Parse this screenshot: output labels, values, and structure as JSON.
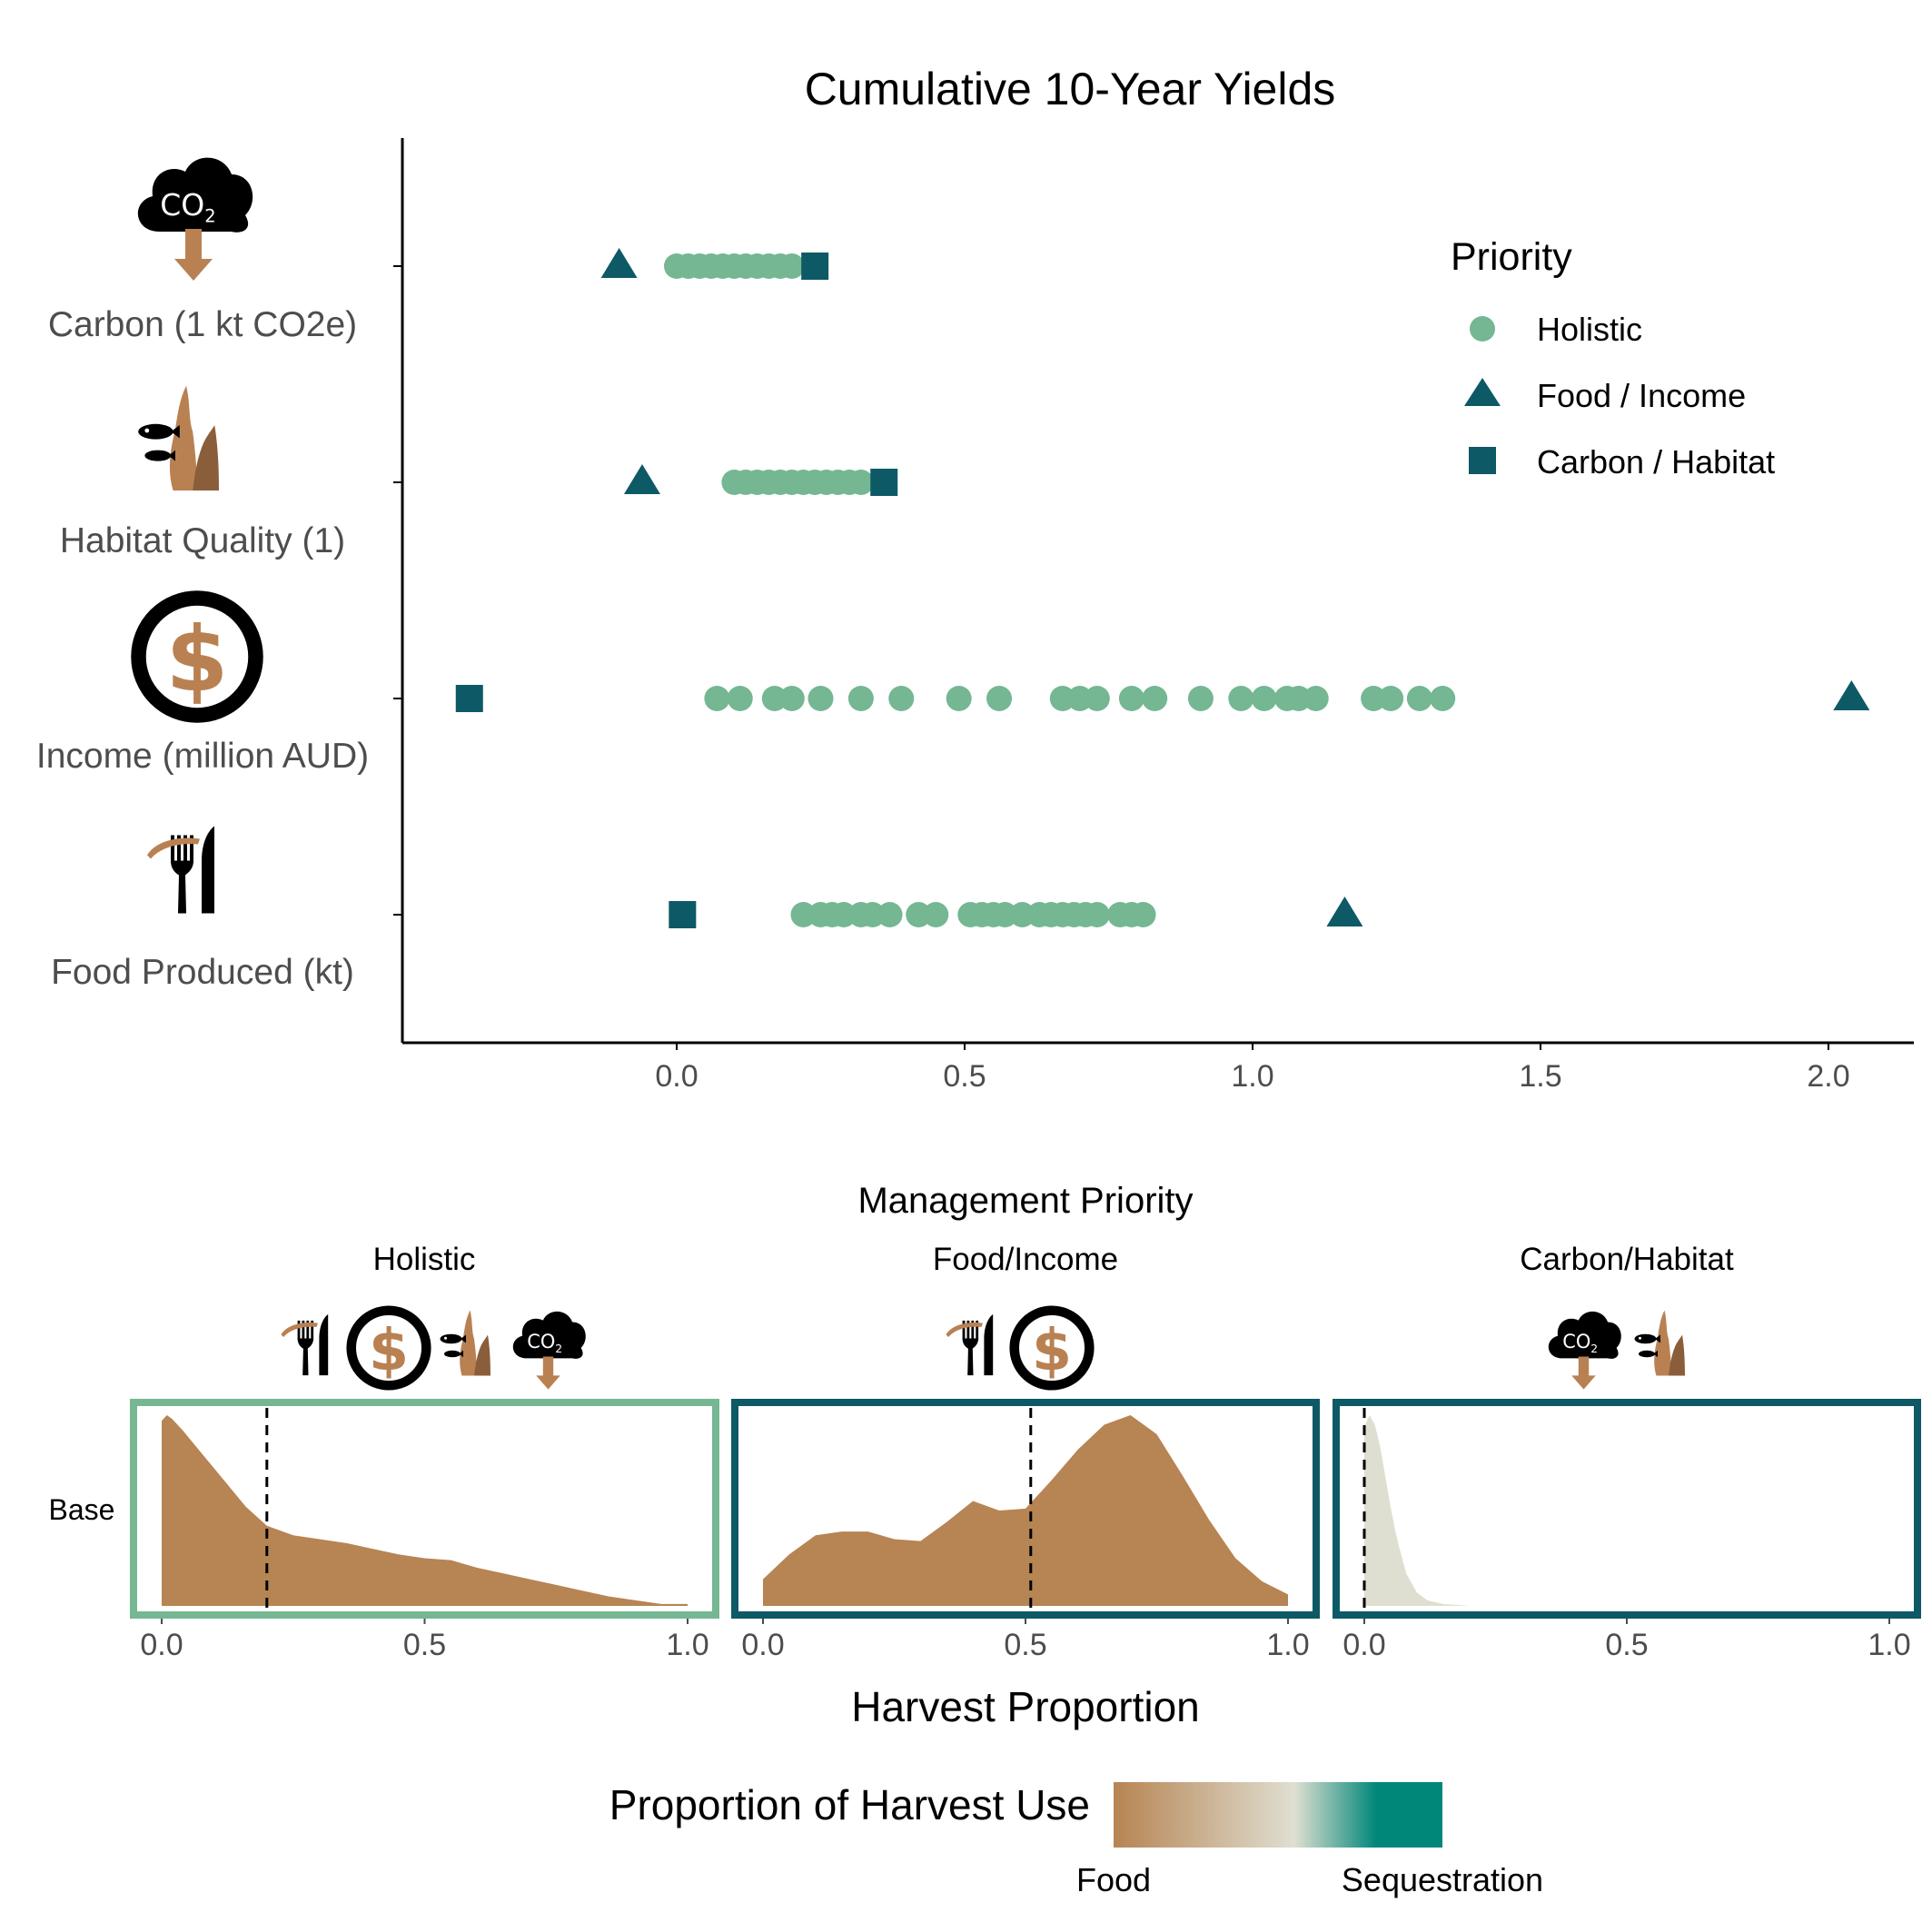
{
  "colors": {
    "holistic": "#74b792",
    "food_income": "#0d5966",
    "carbon_habitat": "#0d5966",
    "food": "#b78453",
    "sequestration": "#00877a",
    "mid": "#dfdfd1",
    "icon_dark": "#000000",
    "icon_brown": "#b98152",
    "icon_brown_dark": "#8a5e3b",
    "axis_text": "#4d4d4d"
  },
  "icons": {
    "carbon": "co2-cloud-down-arrow-icon",
    "habitat": "seaweed-with-fish-icon",
    "income": "dollar-coin-icon",
    "food": "fork-knife-seaweed-icon",
    "co2_text": "CO",
    "co2_sub": "2",
    "dollar": "$"
  },
  "chart_data": [
    {
      "type": "scatter",
      "title": "Cumulative 10-Year Yields",
      "xlabel": "",
      "ylabel": "",
      "xlim": [
        -0.47,
        2.15
      ],
      "x_ticks": [
        "0.0",
        "0.5",
        "1.0",
        "1.5",
        "2.0"
      ],
      "x_tick_values": [
        0,
        0.5,
        1.0,
        1.5,
        2.0
      ],
      "categories": [
        "Carbon (1 kt CO2e)",
        "Habitat Quality (1)",
        "Income (million AUD)",
        "Food Produced (kt)"
      ],
      "legend": {
        "title": "Priority",
        "position": "top-right",
        "entries": [
          {
            "label": "Holistic",
            "shape": "circle",
            "color": "#74b792"
          },
          {
            "label": "Food / Income",
            "shape": "triangle",
            "color": "#0d5966"
          },
          {
            "label": "Carbon / Habitat",
            "shape": "square",
            "color": "#0d5966"
          }
        ]
      },
      "series": [
        {
          "name": "Holistic",
          "shape": "circle",
          "points": {
            "Carbon (1 kt CO2e)": [
              0.0,
              0.02,
              0.04,
              0.06,
              0.08,
              0.1,
              0.12,
              0.14,
              0.16,
              0.18,
              0.2
            ],
            "Habitat Quality (1)": [
              0.1,
              0.12,
              0.14,
              0.16,
              0.18,
              0.2,
              0.22,
              0.24,
              0.26,
              0.28,
              0.3,
              0.32
            ],
            "Income (million AUD)": [
              0.07,
              0.11,
              0.17,
              0.2,
              0.25,
              0.32,
              0.39,
              0.49,
              0.56,
              0.67,
              0.7,
              0.73,
              0.79,
              0.83,
              0.91,
              0.98,
              1.02,
              1.06,
              1.08,
              1.11,
              1.21,
              1.24,
              1.29,
              1.33
            ],
            "Food Produced (kt)": [
              0.22,
              0.25,
              0.27,
              0.29,
              0.32,
              0.34,
              0.37,
              0.42,
              0.45,
              0.51,
              0.53,
              0.55,
              0.57,
              0.6,
              0.63,
              0.65,
              0.67,
              0.69,
              0.71,
              0.73,
              0.77,
              0.79,
              0.81
            ]
          }
        },
        {
          "name": "Food / Income",
          "shape": "triangle",
          "points": {
            "Carbon (1 kt CO2e)": [
              -0.1
            ],
            "Habitat Quality (1)": [
              -0.06
            ],
            "Income (million AUD)": [
              2.04
            ],
            "Food Produced (kt)": [
              1.16
            ]
          }
        },
        {
          "name": "Carbon / Habitat",
          "shape": "square",
          "points": {
            "Carbon (1 kt CO2e)": [
              0.24
            ],
            "Habitat Quality (1)": [
              0.36
            ],
            "Income (million AUD)": [
              -0.36
            ],
            "Food Produced (kt)": [
              0.01
            ]
          }
        }
      ]
    },
    {
      "type": "area",
      "title": "Management Priority",
      "xlabel": "Harvest Proportion",
      "ylabel": "",
      "row_label": "Base",
      "xlim": [
        0,
        1
      ],
      "x_ticks": [
        "0.0",
        "0.5",
        "1.0"
      ],
      "x_tick_values": [
        0,
        0.5,
        1.0
      ],
      "panels": [
        {
          "name": "Holistic",
          "frame_color": "#74b792",
          "fill": "#b78453",
          "median": 0.2,
          "icons": [
            "fork-knife-seaweed-icon",
            "dollar-coin-icon",
            "seaweed-with-fish-icon",
            "co2-cloud-down-arrow-icon"
          ],
          "x": [
            0,
            0.01,
            0.02,
            0.04,
            0.07,
            0.1,
            0.13,
            0.16,
            0.2,
            0.25,
            0.3,
            0.35,
            0.4,
            0.45,
            0.5,
            0.55,
            0.6,
            0.65,
            0.7,
            0.75,
            0.8,
            0.85,
            0.9,
            0.95,
            1.0
          ],
          "density": [
            0.97,
            1.0,
            0.98,
            0.92,
            0.82,
            0.72,
            0.62,
            0.52,
            0.42,
            0.37,
            0.35,
            0.33,
            0.3,
            0.27,
            0.25,
            0.24,
            0.2,
            0.17,
            0.14,
            0.11,
            0.08,
            0.05,
            0.03,
            0.01,
            0.01
          ]
        },
        {
          "name": "Food/Income",
          "frame_color": "#0d5966",
          "fill": "#b78453",
          "median": 0.51,
          "icons": [
            "fork-knife-seaweed-icon",
            "dollar-coin-icon"
          ],
          "x": [
            0,
            0.05,
            0.1,
            0.15,
            0.2,
            0.25,
            0.3,
            0.35,
            0.4,
            0.45,
            0.5,
            0.55,
            0.6,
            0.65,
            0.7,
            0.75,
            0.8,
            0.85,
            0.9,
            0.95,
            1.0
          ],
          "density": [
            0.14,
            0.27,
            0.37,
            0.39,
            0.39,
            0.35,
            0.34,
            0.44,
            0.55,
            0.5,
            0.51,
            0.66,
            0.82,
            0.95,
            1.0,
            0.9,
            0.68,
            0.45,
            0.25,
            0.13,
            0.06
          ]
        },
        {
          "name": "Carbon/Habitat",
          "frame_color": "#0d5966",
          "fill": "#dfdfd1",
          "median": 0.0,
          "icons": [
            "co2-cloud-down-arrow-icon",
            "seaweed-with-fish-icon"
          ],
          "x": [
            0,
            0.01,
            0.02,
            0.03,
            0.04,
            0.05,
            0.06,
            0.07,
            0.08,
            0.1,
            0.12,
            0.15,
            0.2,
            0.25
          ],
          "density": [
            0.94,
            1.0,
            0.95,
            0.84,
            0.68,
            0.52,
            0.38,
            0.27,
            0.17,
            0.07,
            0.03,
            0.01,
            0.0,
            0.0
          ]
        }
      ],
      "colorbar": {
        "title": "Proportion of Harvest Use",
        "low_label": "Food",
        "high_label": "Sequestration",
        "stops": [
          "#b78453",
          "#dfdfd1",
          "#00877a"
        ]
      }
    }
  ]
}
